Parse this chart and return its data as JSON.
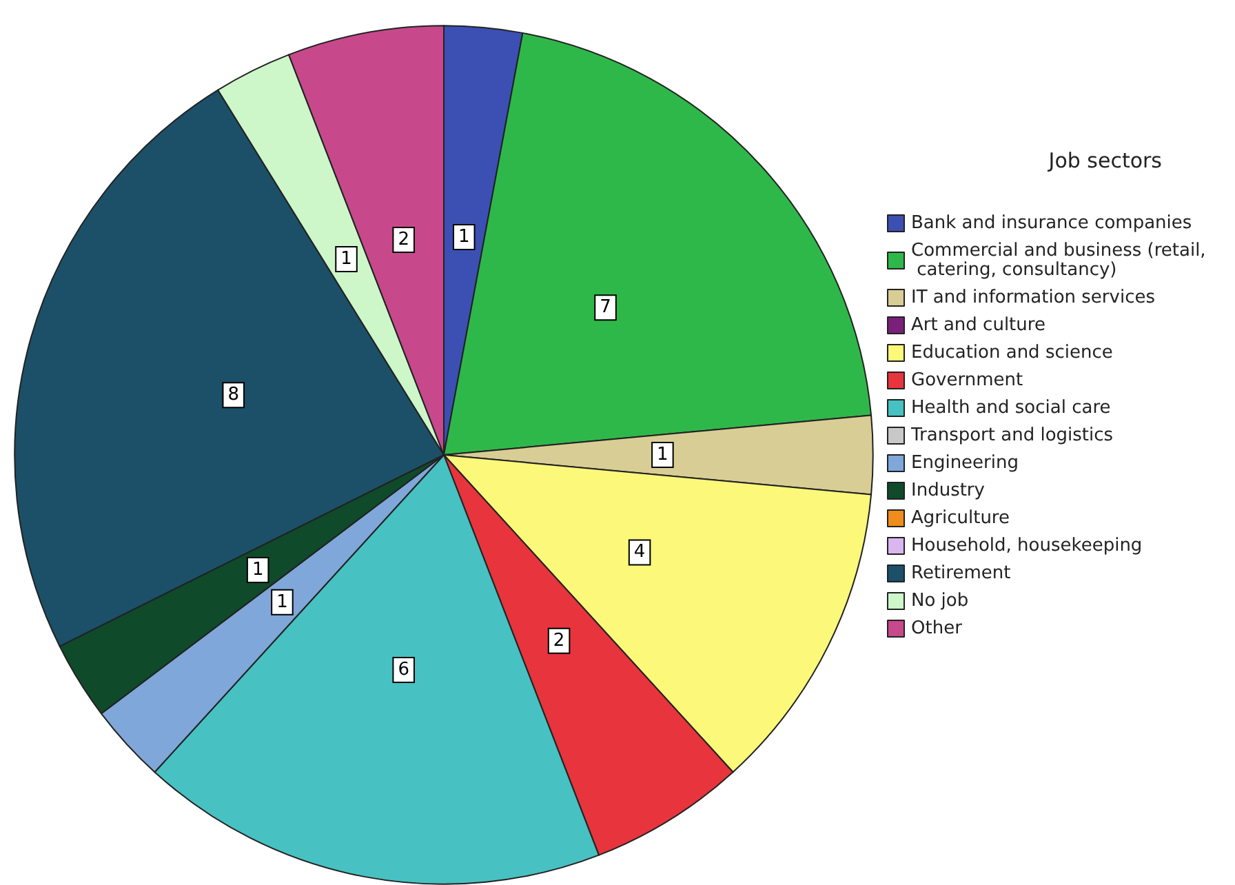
{
  "chart_data": {
    "type": "pie",
    "legend_title": "Job sectors",
    "legend": "right",
    "categories": [
      "Bank and insurance companies",
      "Commercial and business (retail, catering, consultancy)",
      "IT and information services",
      "Art and culture",
      "Education and science",
      "Government",
      "Health and social care",
      "Transport and logistics",
      "Engineering",
      "Industry",
      "Agriculture",
      "Household, housekeeping",
      "Retirement",
      "No job",
      "Other"
    ],
    "values": [
      1,
      7,
      1,
      0,
      4,
      2,
      6,
      0,
      1,
      1,
      0,
      0,
      8,
      1,
      2
    ],
    "value_labels": [
      "1",
      "7",
      "1",
      null,
      "4",
      "2",
      "6",
      null,
      "1",
      "1",
      null,
      null,
      "8",
      "1",
      "2"
    ],
    "colors": [
      "#3b50b2",
      "#2fb84a",
      "#d9cd96",
      "#7b1f7b",
      "#fbf87a",
      "#e8343c",
      "#47c1c1",
      "#c8c8c8",
      "#7fa7d9",
      "#0f4a2b",
      "#f08c1c",
      "#dab6f0",
      "#1b5068",
      "#cdf6c9",
      "#c8488c"
    ]
  }
}
